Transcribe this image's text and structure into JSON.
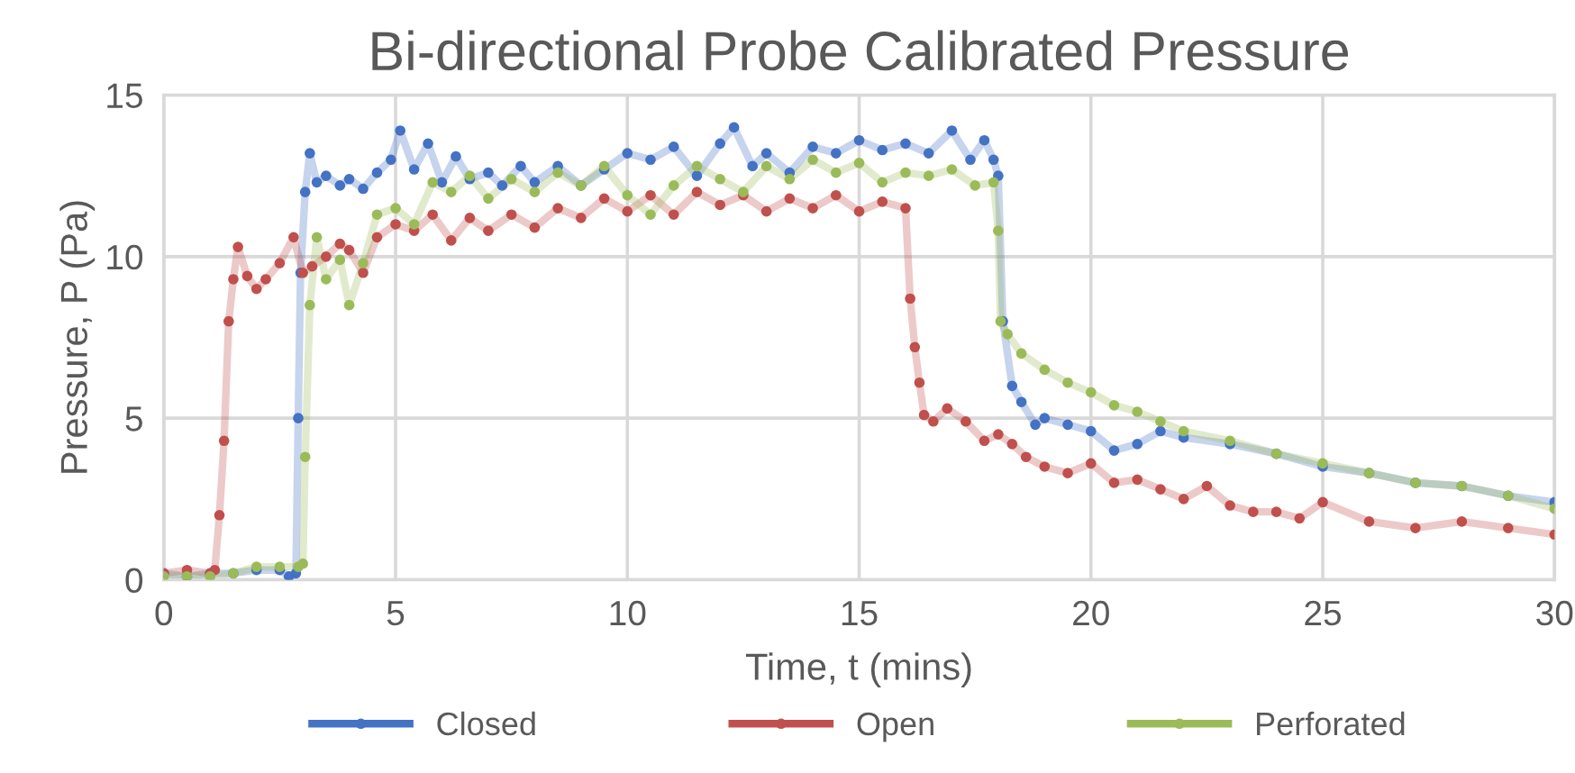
{
  "chart_data": {
    "type": "line",
    "title": "Bi-directional Probe Calibrated Pressure",
    "xlabel": "Time, t (mins)",
    "ylabel": "Pressure, P (Pa)",
    "xlim": [
      0,
      30
    ],
    "xticks": [
      0,
      5,
      10,
      15,
      20,
      25,
      30
    ],
    "ylim": [
      0,
      15
    ],
    "yticks": [
      0,
      5,
      10,
      15
    ],
    "grid": true,
    "legend": "bottom",
    "marker": "circle",
    "line_style": "solid",
    "series": [
      {
        "name": "Closed",
        "color": "#4472c4",
        "x": [
          0,
          0.5,
          1,
          1.5,
          2,
          2.5,
          2.7,
          2.85,
          2.9,
          2.95,
          3.05,
          3.15,
          3.3,
          3.5,
          3.8,
          4,
          4.3,
          4.6,
          4.9,
          5.1,
          5.4,
          5.7,
          6,
          6.3,
          6.6,
          7,
          7.3,
          7.7,
          8,
          8.5,
          9,
          9.5,
          10,
          10.5,
          11,
          11.5,
          12,
          12.3,
          12.7,
          13,
          13.5,
          14,
          14.5,
          15,
          15.5,
          16,
          16.5,
          17,
          17.4,
          17.7,
          17.9,
          18,
          18.1,
          18.3,
          18.5,
          18.8,
          19,
          19.5,
          20,
          20.5,
          21,
          21.5,
          22,
          23,
          24,
          25,
          26,
          27,
          28,
          29,
          30
        ],
        "values": [
          0.2,
          0.1,
          0.2,
          0.2,
          0.3,
          0.3,
          0.1,
          0.2,
          5,
          9.5,
          12.0,
          13.2,
          12.3,
          12.5,
          12.2,
          12.4,
          12.1,
          12.6,
          13.0,
          13.9,
          12.7,
          13.5,
          12.3,
          13.1,
          12.4,
          12.6,
          12.2,
          12.8,
          12.3,
          12.8,
          12.2,
          12.7,
          13.2,
          13.0,
          13.4,
          12.5,
          13.5,
          14.0,
          12.8,
          13.2,
          12.6,
          13.4,
          13.2,
          13.6,
          13.3,
          13.5,
          13.2,
          13.9,
          13.0,
          13.6,
          13.0,
          12.5,
          8,
          6,
          5.5,
          4.8,
          5.0,
          4.8,
          4.6,
          4.0,
          4.2,
          4.6,
          4.4,
          4.2,
          3.9,
          3.5,
          3.3,
          3.0,
          2.9,
          2.6,
          2.4
        ]
      },
      {
        "name": "Open",
        "color": "#c0504d",
        "x": [
          0,
          0.5,
          1,
          1.1,
          1.2,
          1.3,
          1.4,
          1.5,
          1.6,
          1.8,
          2,
          2.2,
          2.5,
          2.8,
          3,
          3.2,
          3.5,
          3.8,
          4,
          4.3,
          4.6,
          5,
          5.4,
          5.8,
          6.2,
          6.6,
          7,
          7.5,
          8,
          8.5,
          9,
          9.5,
          10,
          10.5,
          11,
          11.5,
          12,
          12.5,
          13,
          13.5,
          14,
          14.5,
          15,
          15.5,
          16,
          16.1,
          16.2,
          16.3,
          16.4,
          16.6,
          16.9,
          17.3,
          17.7,
          18,
          18.3,
          18.6,
          19,
          19.5,
          20,
          20.5,
          21,
          21.5,
          22,
          22.5,
          23,
          23.5,
          24,
          24.5,
          25,
          26,
          27,
          28,
          29,
          30
        ],
        "values": [
          0.2,
          0.3,
          0.2,
          0.3,
          2.0,
          4.3,
          8.0,
          9.3,
          10.3,
          9.4,
          9.0,
          9.3,
          9.8,
          10.6,
          9.5,
          9.7,
          10.0,
          10.4,
          10.2,
          9.5,
          10.6,
          11.0,
          10.8,
          11.3,
          10.5,
          11.2,
          10.8,
          11.3,
          10.9,
          11.5,
          11.2,
          11.8,
          11.4,
          11.9,
          11.3,
          12.0,
          11.6,
          11.9,
          11.4,
          11.8,
          11.5,
          11.9,
          11.4,
          11.7,
          11.5,
          8.7,
          7.2,
          6.1,
          5.1,
          4.9,
          5.3,
          4.9,
          4.3,
          4.5,
          4.2,
          3.8,
          3.5,
          3.3,
          3.6,
          3.0,
          3.1,
          2.8,
          2.5,
          2.9,
          2.3,
          2.1,
          2.1,
          1.9,
          2.4,
          1.8,
          1.6,
          1.8,
          1.6,
          1.4
        ]
      },
      {
        "name": "Perforated",
        "color": "#9bbb59",
        "x": [
          0,
          0.5,
          1,
          1.5,
          2,
          2.5,
          2.9,
          3.0,
          3.05,
          3.15,
          3.3,
          3.5,
          3.8,
          4.0,
          4.3,
          4.6,
          5,
          5.4,
          5.8,
          6.2,
          6.6,
          7,
          7.5,
          8,
          8.5,
          9,
          9.5,
          10,
          10.5,
          11,
          11.5,
          12,
          12.5,
          13,
          13.5,
          14,
          14.5,
          15,
          15.5,
          16,
          16.5,
          17,
          17.5,
          17.9,
          18,
          18.05,
          18.2,
          18.5,
          19,
          19.5,
          20,
          20.5,
          21,
          21.5,
          22,
          23,
          24,
          25,
          26,
          27,
          28,
          29,
          30
        ],
        "values": [
          0.1,
          0.1,
          0.1,
          0.2,
          0.4,
          0.4,
          0.4,
          0.5,
          3.8,
          8.5,
          10.6,
          9.3,
          9.9,
          8.5,
          9.8,
          11.3,
          11.5,
          11.0,
          12.3,
          12.0,
          12.5,
          11.8,
          12.4,
          12.0,
          12.6,
          12.2,
          12.8,
          11.9,
          11.3,
          12.2,
          12.8,
          12.4,
          12.0,
          12.8,
          12.4,
          13.0,
          12.6,
          12.9,
          12.3,
          12.6,
          12.5,
          12.7,
          12.2,
          12.3,
          10.8,
          8.0,
          7.6,
          7.0,
          6.5,
          6.1,
          5.8,
          5.4,
          5.2,
          4.9,
          4.6,
          4.3,
          3.9,
          3.6,
          3.3,
          3.0,
          2.9,
          2.6,
          2.2
        ]
      }
    ]
  }
}
